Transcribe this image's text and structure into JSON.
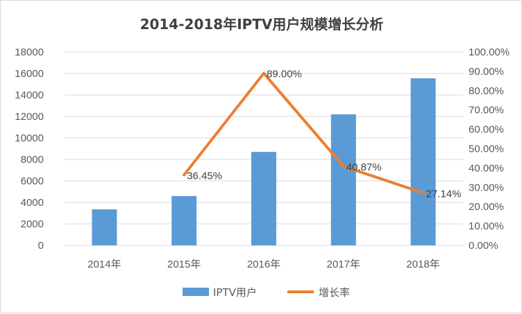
{
  "chart_data": {
    "type": "bar+line",
    "title": "2014-2018年IPTV用户规模增长分析",
    "categories": [
      "2014年",
      "2015年",
      "2016年",
      "2017年",
      "2018年"
    ],
    "series": [
      {
        "name": "IPTV用户",
        "kind": "bar",
        "axis": "left",
        "color": "#5b9bd5",
        "values": [
          3350,
          4590,
          8700,
          12200,
          15550
        ]
      },
      {
        "name": "增长率",
        "kind": "line",
        "axis": "right",
        "color": "#ed7d31",
        "values": [
          null,
          36.45,
          89.0,
          40.87,
          27.14
        ],
        "labels": [
          "",
          "36.45%",
          "89.00%",
          "40.87%",
          "27.14%"
        ]
      }
    ],
    "y_left": {
      "min": 0,
      "max": 18000,
      "step": 2000,
      "ticks": [
        "0",
        "2000",
        "4000",
        "6000",
        "8000",
        "10000",
        "12000",
        "14000",
        "16000",
        "18000"
      ]
    },
    "y_right": {
      "min": 0,
      "max": 100,
      "step": 10,
      "ticks": [
        "0.00%",
        "10.00%",
        "20.00%",
        "30.00%",
        "40.00%",
        "50.00%",
        "60.00%",
        "70.00%",
        "80.00%",
        "90.00%",
        "100.00%"
      ]
    },
    "grid": true,
    "legend_position": "bottom"
  }
}
